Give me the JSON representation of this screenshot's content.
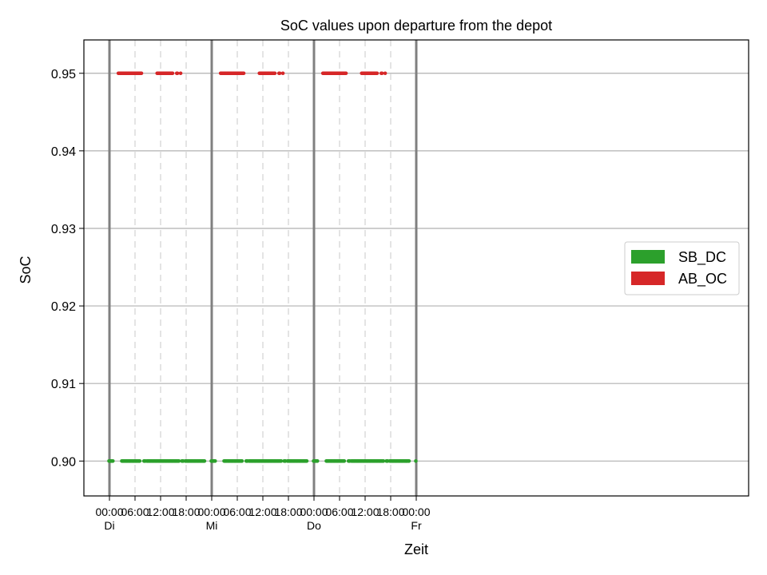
{
  "chart_data": {
    "type": "scatter",
    "title": "SoC values upon departure from the depot",
    "xlabel": "Zeit",
    "ylabel": "SoC",
    "x_unit": "hours",
    "xlim": [
      -6,
      150
    ],
    "ylim": [
      0.8955,
      0.9543
    ],
    "yticks": [
      "0.90",
      "0.91",
      "0.92",
      "0.93",
      "0.94",
      "0.95"
    ],
    "ytick_values": [
      0.9,
      0.91,
      0.92,
      0.93,
      0.94,
      0.95
    ],
    "xticks": [
      {
        "x": 0,
        "time": "00:00",
        "day": "Di"
      },
      {
        "x": 6,
        "time": "06:00",
        "day": ""
      },
      {
        "x": 12,
        "time": "12:00",
        "day": ""
      },
      {
        "x": 18,
        "time": "18:00",
        "day": ""
      },
      {
        "x": 24,
        "time": "00:00",
        "day": "Mi"
      },
      {
        "x": 30,
        "time": "06:00",
        "day": ""
      },
      {
        "x": 36,
        "time": "12:00",
        "day": ""
      },
      {
        "x": 42,
        "time": "18:00",
        "day": ""
      },
      {
        "x": 48,
        "time": "00:00",
        "day": "Do"
      },
      {
        "x": 54,
        "time": "06:00",
        "day": ""
      },
      {
        "x": 60,
        "time": "12:00",
        "day": ""
      },
      {
        "x": 66,
        "time": "18:00",
        "day": ""
      },
      {
        "x": 72,
        "time": "00:00",
        "day": "Fr"
      }
    ],
    "grid": true,
    "day_separators": [
      0,
      24,
      48,
      72
    ],
    "legend": {
      "placement": "center-right"
    },
    "series": [
      {
        "name": "SB_DC",
        "color": "#2ca02c",
        "y": 0.9,
        "intervals": [
          [
            -0.1,
            0.8
          ],
          [
            2.9,
            7.1
          ],
          [
            8.1,
            8.4
          ],
          [
            8.8,
            16.3
          ],
          [
            17.0,
            17.4
          ],
          [
            17.8,
            22.4
          ],
          [
            23.9,
            24.8
          ],
          [
            26.9,
            31.1
          ],
          [
            32.1,
            32.4
          ],
          [
            32.8,
            40.3
          ],
          [
            41.0,
            41.4
          ],
          [
            41.8,
            46.4
          ],
          [
            47.9,
            48.8
          ],
          [
            50.9,
            55.1
          ],
          [
            56.1,
            56.4
          ],
          [
            56.8,
            64.3
          ],
          [
            65.0,
            65.4
          ],
          [
            65.8,
            70.4
          ],
          [
            71.9,
            72.0
          ]
        ]
      },
      {
        "name": "AB_OC",
        "color": "#d62728",
        "y": 0.95,
        "intervals": [
          [
            2.1,
            7.5
          ],
          [
            11.2,
            14.8
          ],
          [
            15.8,
            16.0
          ],
          [
            16.7,
            16.8
          ],
          [
            26.1,
            31.5
          ],
          [
            35.2,
            38.8
          ],
          [
            39.8,
            40.0
          ],
          [
            40.7,
            40.8
          ],
          [
            50.1,
            55.5
          ],
          [
            59.2,
            62.8
          ],
          [
            63.8,
            64.0
          ],
          [
            64.7,
            64.8
          ]
        ]
      }
    ]
  }
}
